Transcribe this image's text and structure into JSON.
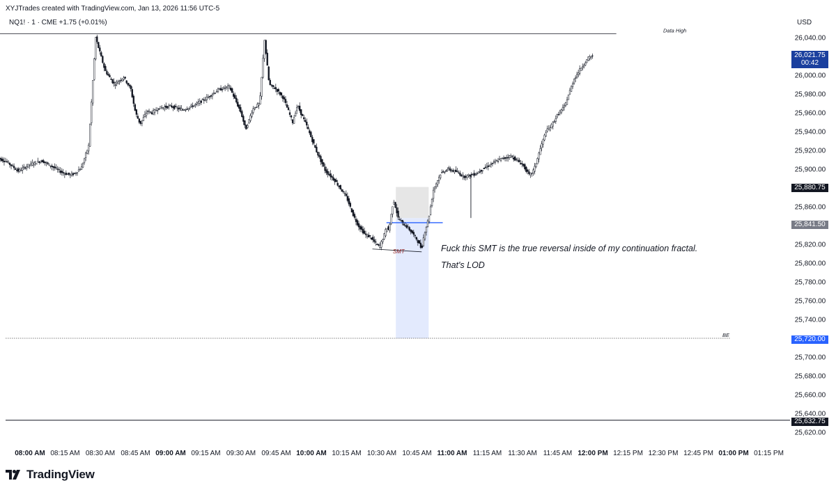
{
  "header": {
    "attribution": "XYJTrades created with TradingView.com, Jan 13, 2026 11:56 UTC-5",
    "symbol_line": "NQ1! · 1 · CME  +1.75 (+0.01%)",
    "currency": "USD"
  },
  "branding": {
    "logo_text": "TradingView"
  },
  "annotations": {
    "note_line1": "Fuck this SMT is the true reversal inside of my continuation fractal.",
    "note_line2": "That's LOD",
    "smt_label": "SMT",
    "data_high_label": "Data High",
    "be_label": "BE"
  },
  "price_tags": {
    "current": "26,021.75",
    "countdown": "00:42",
    "level_1": "25,880.75",
    "level_2": "25,841.50",
    "be_level": "25,720.00",
    "low_level": "25,632.75"
  },
  "colors": {
    "candle": "#131722",
    "current_tag": "#1a3f9e",
    "blue_tag": "#2962ff",
    "gray_tag": "#787b86",
    "dark_tag": "#131722",
    "blue_zone": "#e3eafd",
    "gray_zone": "#e6e6e6",
    "smt_text": "#8b1a1a",
    "hline": "#2962ff"
  },
  "chart_data": {
    "type": "candlestick",
    "title": "",
    "xlabel": "",
    "ylabel": "USD",
    "ylim": [
      25610,
      26050
    ],
    "y_ticks": [
      "26,040.00",
      "26,020.00",
      "26,000.00",
      "25,980.00",
      "25,960.00",
      "25,940.00",
      "25,920.00",
      "25,900.00",
      "25,880.00",
      "25,860.00",
      "25,840.00",
      "25,820.00",
      "25,800.00",
      "25,780.00",
      "25,760.00",
      "25,740.00",
      "25,720.00",
      "25,700.00",
      "25,680.00",
      "25,660.00",
      "25,640.00",
      "25,620.00"
    ],
    "y_tick_values": [
      26040,
      26020,
      26000,
      25980,
      25960,
      25940,
      25920,
      25900,
      25880,
      25860,
      25840,
      25820,
      25800,
      25780,
      25760,
      25740,
      25720,
      25700,
      25680,
      25660,
      25640,
      25620
    ],
    "x_ticks": [
      {
        "label": "08:00 AM",
        "bold": true
      },
      {
        "label": "08:15 AM",
        "bold": false
      },
      {
        "label": "08:30 AM",
        "bold": false
      },
      {
        "label": "08:45 AM",
        "bold": false
      },
      {
        "label": "09:00 AM",
        "bold": true
      },
      {
        "label": "09:15 AM",
        "bold": false
      },
      {
        "label": "09:30 AM",
        "bold": false
      },
      {
        "label": "09:45 AM",
        "bold": false
      },
      {
        "label": "10:00 AM",
        "bold": true
      },
      {
        "label": "10:15 AM",
        "bold": false
      },
      {
        "label": "10:30 AM",
        "bold": false
      },
      {
        "label": "10:45 AM",
        "bold": false
      },
      {
        "label": "11:00 AM",
        "bold": true
      },
      {
        "label": "11:15 AM",
        "bold": false
      },
      {
        "label": "11:30 AM",
        "bold": false
      },
      {
        "label": "11:45 AM",
        "bold": false
      },
      {
        "label": "12:00 PM",
        "bold": true
      },
      {
        "label": "12:15 PM",
        "bold": false
      },
      {
        "label": "12:30 PM",
        "bold": false
      },
      {
        "label": "12:45 PM",
        "bold": false
      },
      {
        "label": "01:00 PM",
        "bold": true
      },
      {
        "label": "01:15 PM",
        "bold": false
      }
    ],
    "x_tick_minutes": [
      0,
      15,
      30,
      45,
      60,
      75,
      90,
      105,
      120,
      135,
      150,
      165,
      180,
      195,
      210,
      225,
      240,
      255,
      270,
      285,
      300,
      315
    ],
    "price_path_minutes": [
      -14,
      -10,
      -5,
      0,
      5,
      10,
      14,
      17,
      19,
      22,
      25,
      28,
      32,
      36,
      40,
      43,
      45,
      47,
      50,
      52,
      55,
      60,
      65,
      70,
      75,
      80,
      85,
      90,
      92,
      95,
      98,
      100,
      102,
      105,
      108,
      110,
      112,
      114,
      118,
      122,
      126,
      130,
      135,
      138,
      140,
      143,
      145,
      147,
      149,
      151,
      152,
      153,
      155,
      157,
      159,
      161,
      163,
      165,
      167,
      168,
      170,
      172,
      175,
      178,
      182,
      185,
      190,
      195,
      200,
      205,
      210,
      213,
      215,
      218,
      220,
      222,
      225,
      228,
      230,
      232,
      235,
      238,
      240
    ],
    "price_path": [
      25912,
      25908,
      25898,
      25905,
      25909,
      25902,
      25896,
      25894,
      25895,
      25902,
      25925,
      26040,
      26005,
      25990,
      25998,
      25985,
      25960,
      25948,
      25962,
      25960,
      25965,
      25967,
      25963,
      25968,
      25975,
      25984,
      25988,
      25960,
      25942,
      25964,
      25970,
      26038,
      25990,
      25985,
      25976,
      25963,
      25950,
      25968,
      25946,
      25920,
      25898,
      25888,
      25870,
      25850,
      25840,
      25830,
      25828,
      25822,
      25817,
      25830,
      25838,
      25835,
      25868,
      25848,
      25842,
      25838,
      25832,
      25825,
      25815,
      25830,
      25848,
      25878,
      25895,
      25900,
      25897,
      25892,
      25895,
      25903,
      25910,
      25914,
      25905,
      25893,
      25900,
      25925,
      25940,
      25945,
      25958,
      25967,
      25982,
      25996,
      26008,
      26018,
      26021
    ],
    "wick_spike": {
      "minute": 188,
      "low": 25848
    },
    "key_levels": {
      "data_high": 26044,
      "entry_line": 25843,
      "be": 25720,
      "lod": 25632.75
    },
    "zones": {
      "gray_zone": {
        "x_start": 156,
        "x_end": 170,
        "top": 25881,
        "bottom": 25848
      },
      "blue_zone": {
        "x_start": 156,
        "x_end": 170,
        "top": 25848,
        "bottom": 25720
      }
    },
    "smt_line": {
      "x_start": 146,
      "x_end": 167,
      "y_start": 25815,
      "y_end": 25812
    }
  }
}
